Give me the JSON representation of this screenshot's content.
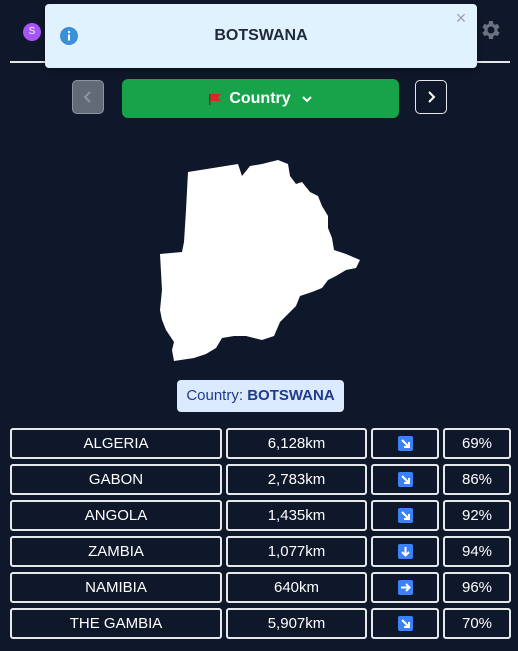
{
  "header": {
    "avatar_letter": "S",
    "colors": {
      "avatar": "#a855f7",
      "background": "#0f172a"
    },
    "icons": [
      "settings-gear-icon"
    ]
  },
  "toast": {
    "title": "BOTSWANA",
    "close_label": "×",
    "icons": [
      "info-icon"
    ]
  },
  "mode": {
    "label": "Country",
    "icons": [
      "flag-icon",
      "chevron-down-icon"
    ],
    "color": "#16a34a"
  },
  "nav": {
    "icons": [
      "chevron-left-icon",
      "chevron-right-icon"
    ]
  },
  "answer": {
    "prefix": "Country:",
    "name": "BOTSWANA"
  },
  "guesses": [
    {
      "country": "ALGERIA",
      "distance": "6,128km",
      "direction": "south-east",
      "proximity": "69%"
    },
    {
      "country": "GABON",
      "distance": "2,783km",
      "direction": "south-east",
      "proximity": "86%"
    },
    {
      "country": "ANGOLA",
      "distance": "1,435km",
      "direction": "south-east",
      "proximity": "92%"
    },
    {
      "country": "ZAMBIA",
      "distance": "1,077km",
      "direction": "south",
      "proximity": "94%"
    },
    {
      "country": "NAMIBIA",
      "distance": "640km",
      "direction": "east",
      "proximity": "96%"
    },
    {
      "country": "THE GAMBIA",
      "distance": "5,907km",
      "direction": "south-east",
      "proximity": "70%"
    }
  ]
}
